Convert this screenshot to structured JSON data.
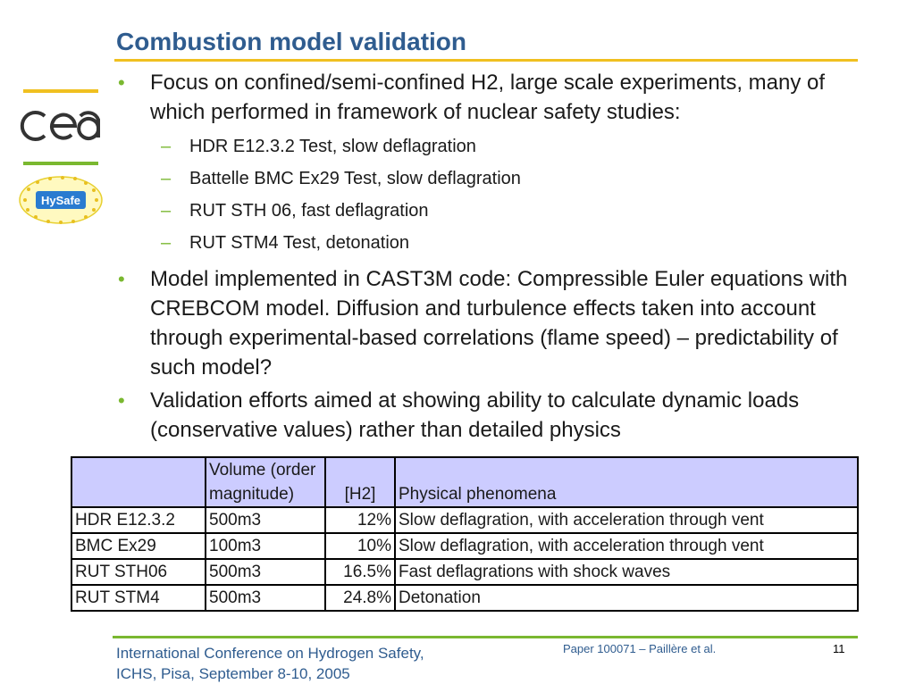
{
  "title": "Combustion model validation",
  "bullets": [
    {
      "text": "Focus on confined/semi-confined H2, large scale experiments, many of which performed in framework of nuclear safety studies:",
      "subitems": [
        "HDR E12.3.2 Test, slow deflagration",
        "Battelle BMC Ex29 Test, slow deflagration",
        "RUT STH 06, fast deflagration",
        "RUT STM4 Test, detonation"
      ]
    },
    {
      "text": "Model implemented in CAST3M code: Compressible Euler equations with CREBCOM model. Diffusion and turbulence effects taken into account through experimental-based correlations (flame speed) – predictability of such model?",
      "subitems": []
    },
    {
      "text": "Validation efforts aimed at showing ability to calculate dynamic loads (conservative values) rather than detailed physics",
      "subitems": []
    }
  ],
  "table": {
    "headers": [
      "",
      "Volume (order magnitude)",
      "[H2]",
      "Physical phenomena"
    ],
    "rows": [
      [
        "HDR E12.3.2",
        "500m3",
        "12%",
        "Slow deflagration, with acceleration through vent"
      ],
      [
        "BMC Ex29",
        "100m3",
        "10%",
        "Slow deflagration, with acceleration through vent"
      ],
      [
        "RUT STH06",
        "500m3",
        "16.5%",
        "Fast deflagrations with shock waves"
      ],
      [
        "RUT STM4",
        "500m3",
        "24.8%",
        "Detonation"
      ]
    ]
  },
  "footer": {
    "conference_line1": "International Conference on Hydrogen Safety,",
    "conference_line2": "ICHS, Pisa, September 8-10, 2005",
    "paper": "Paper 100071 – Paillère et al.",
    "page": "11"
  },
  "logos": {
    "cea": "cea",
    "hysafe": "HySafe"
  },
  "colors": {
    "title": "#2f5c8f",
    "accent_yellow": "#f0c020",
    "accent_green": "#7ab830",
    "table_header": "#ccccff"
  }
}
